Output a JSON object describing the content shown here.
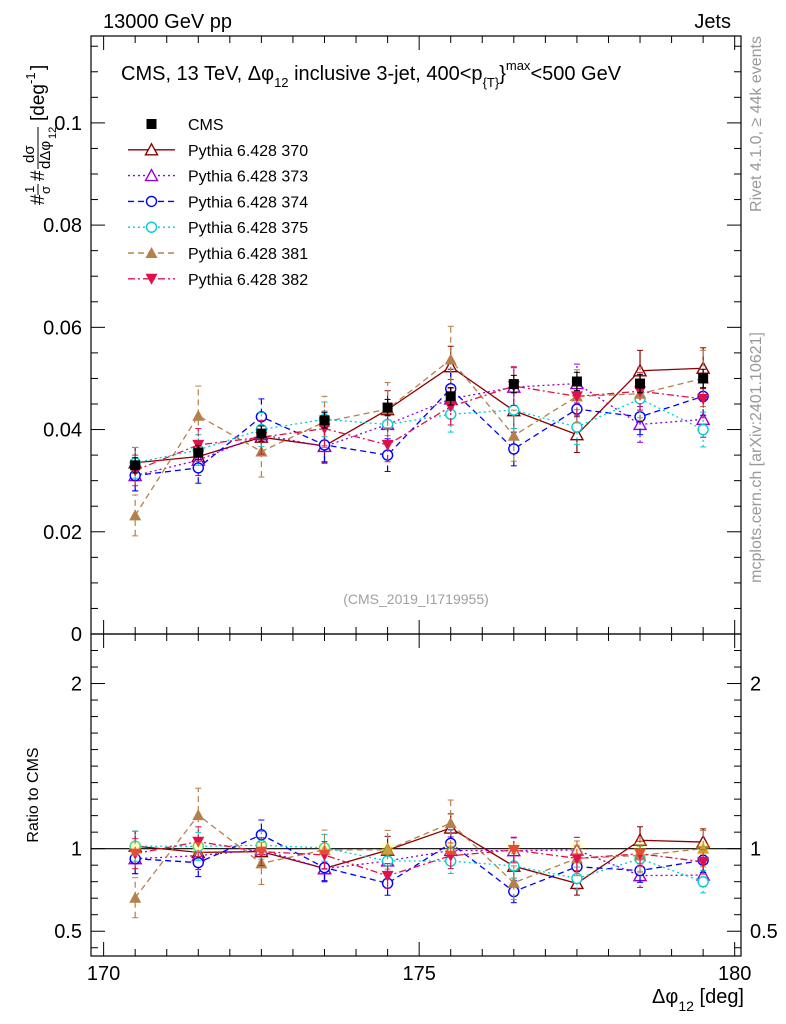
{
  "header": {
    "left": "13000 GeV pp",
    "right": "Jets"
  },
  "side_text": {
    "top": "Rivet 4.1.0, ≥ 44k events",
    "bottom": "mcplots.cern.ch [arXiv:2401.10621]"
  },
  "chart_data": {
    "type": "scatter",
    "title": "CMS, 13 TeV, Δφ_12 inclusive 3-jet, 400<p_{T}^max<500 GeV",
    "title_parts": {
      "a": "CMS, 13 TeV, ",
      "b": "Δφ",
      "b_sub": "12",
      "c": " inclusive 3-jet, 400<p",
      "c_sub": "{T}",
      "c_sup": "}",
      "c_sup2": "max",
      "d": "<500 GeV"
    },
    "ylabel": "#1/σ #dσ/dΔφ_12 [deg^-1]",
    "ylabel_parts": {
      "hash1": "#",
      "num1": "1",
      "den1": "σ",
      "hash2": "#",
      "num2": "dσ",
      "den2": "dΔφ",
      "den2_sub": "12",
      "unit": "[deg",
      "unit_sup": "-1",
      "unit_end": "]"
    },
    "xlabel": "Δφ_12 [deg]",
    "xlabel_parts": {
      "a": "Δφ",
      "sub": "12",
      "b": " [deg]"
    },
    "watermark": "(CMS_2019_I1719955)",
    "xlim": [
      169.8,
      180.1
    ],
    "ylim_main": [
      0,
      0.117
    ],
    "ylim_ratio": [
      0.35,
      2.3
    ],
    "ratio_ylabel": "Ratio to CMS",
    "xticks": [
      170,
      175,
      180
    ],
    "xtick_labels": [
      "170",
      "175",
      "180"
    ],
    "yticks_main": [
      0,
      0.02,
      0.04,
      0.06,
      0.08,
      0.1
    ],
    "ytick_labels_main": [
      "0",
      "0.02",
      "0.04",
      "0.06",
      "0.08",
      "0.1"
    ],
    "yticks_ratio": [
      0.5,
      1,
      2
    ],
    "ytick_labels_ratio": [
      "0.5",
      "1",
      "2"
    ],
    "x": [
      170.5,
      171.5,
      172.5,
      173.5,
      174.5,
      175.5,
      176.5,
      177.5,
      178.5,
      179.5
    ],
    "series": [
      {
        "name": "CMS",
        "color": "#000000",
        "marker": "square-filled",
        "line": "none",
        "values": [
          0.033,
          0.0355,
          0.0392,
          0.0418,
          0.0443,
          0.0465,
          0.0489,
          0.0494,
          0.049,
          0.05
        ],
        "err": [
          0.0015,
          0.0014,
          0.0015,
          0.0015,
          0.0016,
          0.0017,
          0.0017,
          0.0018,
          0.0018,
          0.0018
        ]
      },
      {
        "name": "Pythia 6.428 370",
        "color": "#8b0000",
        "marker": "triangle-open",
        "line": "solid",
        "values": [
          0.0335,
          0.0347,
          0.0385,
          0.0368,
          0.0439,
          0.0523,
          0.0437,
          0.039,
          0.0515,
          0.052
        ],
        "err": [
          0.003,
          0.003,
          0.0032,
          0.0033,
          0.0037,
          0.004,
          0.0035,
          0.0035,
          0.004,
          0.004
        ]
      },
      {
        "name": "Pythia 6.428 373",
        "color": "#9400d3",
        "marker": "triangle-open",
        "line": "dotted",
        "values": [
          0.031,
          0.034,
          0.039,
          0.0367,
          0.041,
          0.046,
          0.0483,
          0.049,
          0.041,
          0.042
        ],
        "err": [
          0.003,
          0.003,
          0.0032,
          0.0033,
          0.0035,
          0.0038,
          0.0038,
          0.0038,
          0.0035,
          0.0035
        ]
      },
      {
        "name": "Pythia 6.428 374",
        "color": "#0000ff",
        "marker": "circle-open",
        "line": "dashed",
        "values": [
          0.031,
          0.0325,
          0.0425,
          0.037,
          0.035,
          0.048,
          0.0362,
          0.044,
          0.0425,
          0.0465
        ],
        "err": [
          0.003,
          0.003,
          0.0035,
          0.0033,
          0.0032,
          0.0038,
          0.0033,
          0.0036,
          0.0035,
          0.0037
        ]
      },
      {
        "name": "Pythia 6.428 375",
        "color": "#00ced1",
        "marker": "circle-open",
        "line": "dotted",
        "values": [
          0.0335,
          0.036,
          0.04,
          0.042,
          0.041,
          0.043,
          0.0438,
          0.0405,
          0.046,
          0.04
        ],
        "err": [
          0.003,
          0.003,
          0.0033,
          0.0034,
          0.0034,
          0.0035,
          0.0036,
          0.0034,
          0.0037,
          0.0034
        ]
      },
      {
        "name": "Pythia 6.428 381",
        "color": "#b5804a",
        "marker": "triangle-filled",
        "line": "dashed",
        "values": [
          0.0232,
          0.0427,
          0.0357,
          0.0415,
          0.044,
          0.0537,
          0.0388,
          0.0465,
          0.047,
          0.05
        ],
        "err": [
          0.004,
          0.0058,
          0.005,
          0.005,
          0.0052,
          0.0065,
          0.005,
          0.0052,
          0.0052,
          0.0055
        ]
      },
      {
        "name": "Pythia 6.428 382",
        "color": "#e0104d",
        "marker": "triangledown-filled",
        "line": "dashdot",
        "values": [
          0.032,
          0.037,
          0.0385,
          0.0402,
          0.037,
          0.0445,
          0.0485,
          0.0465,
          0.0475,
          0.046
        ],
        "err": [
          0.003,
          0.0032,
          0.0033,
          0.0034,
          0.0033,
          0.0036,
          0.0038,
          0.0037,
          0.0037,
          0.0037
        ]
      }
    ]
  }
}
